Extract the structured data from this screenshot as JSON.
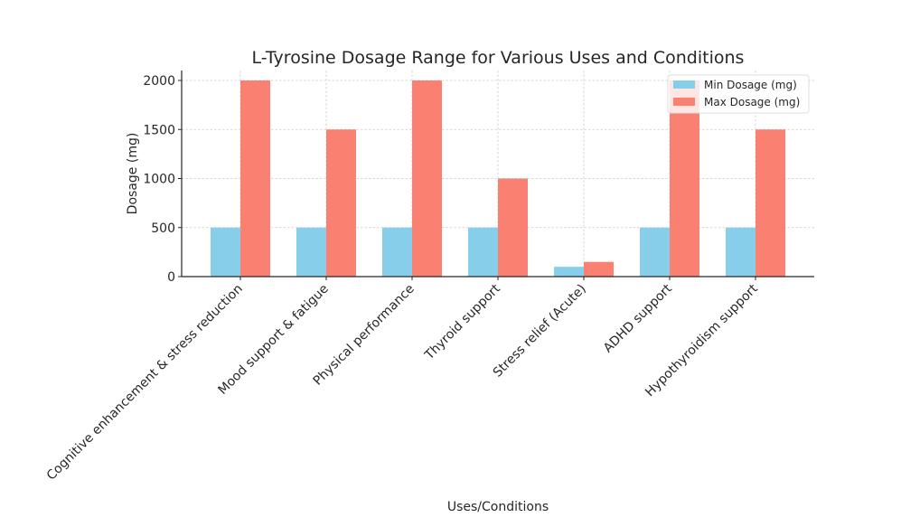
{
  "chart_data": {
    "type": "bar",
    "title": "L-Tyrosine Dosage Range for Various Uses and Conditions",
    "xlabel": "Uses/Conditions",
    "ylabel": "Dosage (mg)",
    "ylim": [
      0,
      2100
    ],
    "yticks": [
      0,
      500,
      1000,
      1500,
      2000
    ],
    "grid": true,
    "legend_position": "top-right",
    "categories": [
      "Cognitive enhancement & stress reduction",
      "Mood support & fatigue",
      "Physical performance",
      "Thyroid support",
      "Stress relief (Acute)",
      "ADHD support",
      "Hypothyroidism support"
    ],
    "series": [
      {
        "name": "Min Dosage (mg)",
        "color": "#87ceeb",
        "values": [
          500,
          500,
          500,
          500,
          100,
          500,
          500
        ]
      },
      {
        "name": "Max Dosage (mg)",
        "color": "#fa8072",
        "values": [
          2000,
          1500,
          2000,
          1000,
          150,
          2000,
          1500
        ]
      }
    ]
  }
}
